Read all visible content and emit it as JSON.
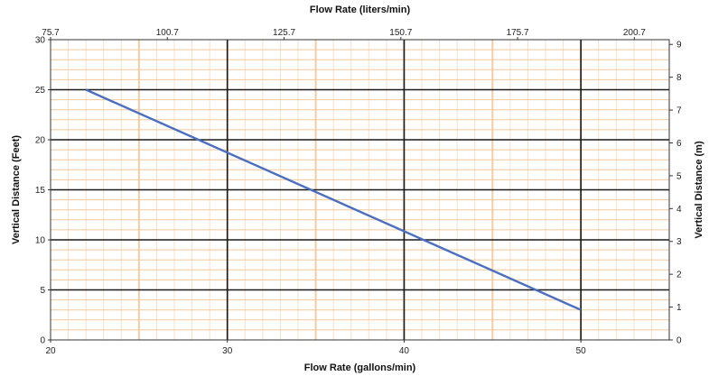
{
  "chart_data": {
    "type": "line",
    "x_title_bottom": "Flow Rate (gallons/min)",
    "x_title_top": "Flow Rate (liters/min)",
    "y_title_left": "Vertical Distance (Feet)",
    "y_title_right": "Vertical Distance (m)",
    "xlim": [
      20,
      55
    ],
    "ylim": [
      0,
      30
    ],
    "x_ticks_bottom": [
      "20",
      "30",
      "40",
      "50"
    ],
    "x_ticks_top": [
      "75.7",
      "100.7",
      "125.7",
      "150.7",
      "175.7",
      "200.7"
    ],
    "y_ticks_left": [
      "0",
      "5",
      "10",
      "15",
      "20",
      "25",
      "30"
    ],
    "y_ticks_right": [
      "0",
      "1",
      "2",
      "3",
      "4",
      "5",
      "6",
      "7",
      "8",
      "9"
    ],
    "grid": true,
    "colors": {
      "line": "#4a6fc2",
      "major_grid": "#1a1a1a",
      "minor_grid": "#f3c79a"
    },
    "series": [
      {
        "x": [
          22,
          50
        ],
        "y": [
          25,
          3
        ]
      }
    ]
  }
}
